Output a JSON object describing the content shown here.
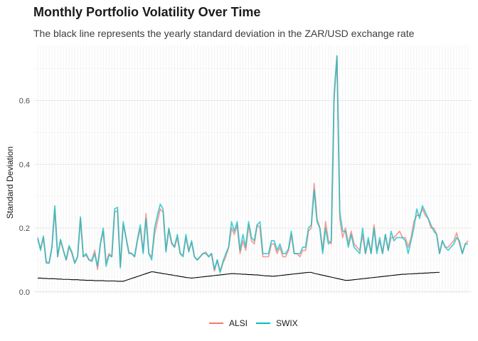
{
  "title": "Monthly Portfolio Volatility Over Time",
  "subtitle": "The black line represents the yearly standard deviation in the ZAR/USD exchange rate",
  "chart_data": {
    "type": "line",
    "title": "Monthly Portfolio Volatility Over Time",
    "subtitle": "The black line represents the yearly standard deviation in the ZAR/USD exchange rate",
    "xlabel": "",
    "ylabel": "Standard Deviation",
    "x_tick_labels_shown": false,
    "ylim": [
      -0.005,
      0.775
    ],
    "yticks": [
      0.0,
      0.2,
      0.4,
      0.6
    ],
    "ytick_labels": [
      "0.0",
      "0.2",
      "0.4",
      "0.6"
    ],
    "grid": true,
    "legend_position": "bottom",
    "n_points": 152,
    "series": [
      {
        "name": "ALSI",
        "color": "#f8766d",
        "values": [
          0.165,
          0.135,
          0.17,
          0.095,
          0.09,
          0.14,
          0.26,
          0.11,
          0.16,
          0.13,
          0.1,
          0.14,
          0.12,
          0.09,
          0.11,
          0.23,
          0.11,
          0.115,
          0.1,
          0.1,
          0.13,
          0.07,
          0.15,
          0.19,
          0.09,
          0.12,
          0.11,
          0.25,
          0.255,
          0.08,
          0.21,
          0.17,
          0.125,
          0.12,
          0.11,
          0.16,
          0.2,
          0.125,
          0.245,
          0.12,
          0.11,
          0.18,
          0.22,
          0.26,
          0.25,
          0.13,
          0.195,
          0.15,
          0.14,
          0.17,
          0.12,
          0.115,
          0.17,
          0.13,
          0.155,
          0.11,
          0.1,
          0.11,
          0.12,
          0.125,
          0.11,
          0.12,
          0.065,
          0.1,
          0.065,
          0.09,
          0.11,
          0.14,
          0.2,
          0.18,
          0.21,
          0.12,
          0.16,
          0.13,
          0.21,
          0.16,
          0.15,
          0.21,
          0.2,
          0.11,
          0.11,
          0.11,
          0.15,
          0.15,
          0.12,
          0.14,
          0.11,
          0.11,
          0.13,
          0.18,
          0.12,
          0.12,
          0.11,
          0.13,
          0.13,
          0.19,
          0.2,
          0.34,
          0.23,
          0.2,
          0.13,
          0.22,
          0.16,
          0.15,
          0.6,
          0.74,
          0.23,
          0.17,
          0.2,
          0.15,
          0.19,
          0.15,
          0.14,
          0.13,
          0.18,
          0.12,
          0.16,
          0.12,
          0.21,
          0.13,
          0.16,
          0.12,
          0.18,
          0.13,
          0.17,
          0.17,
          0.18,
          0.19,
          0.17,
          0.17,
          0.14,
          0.17,
          0.22,
          0.24,
          0.24,
          0.26,
          0.24,
          0.23,
          0.2,
          0.2,
          0.18,
          0.12,
          0.16,
          0.14,
          0.14,
          0.15,
          0.16,
          0.185,
          0.15,
          0.12,
          0.15,
          0.16
        ],
        "values_count_note": ""
      },
      {
        "name": "SWIX",
        "color": "#00bfc4",
        "values": [
          0.17,
          0.13,
          0.175,
          0.09,
          0.09,
          0.14,
          0.27,
          0.11,
          0.165,
          0.13,
          0.1,
          0.145,
          0.125,
          0.09,
          0.11,
          0.235,
          0.11,
          0.12,
          0.1,
          0.095,
          0.12,
          0.08,
          0.15,
          0.2,
          0.08,
          0.115,
          0.11,
          0.26,
          0.265,
          0.075,
          0.22,
          0.17,
          0.12,
          0.12,
          0.11,
          0.165,
          0.21,
          0.12,
          0.23,
          0.12,
          0.1,
          0.2,
          0.24,
          0.275,
          0.26,
          0.125,
          0.2,
          0.155,
          0.14,
          0.18,
          0.12,
          0.11,
          0.18,
          0.125,
          0.16,
          0.11,
          0.1,
          0.11,
          0.12,
          0.12,
          0.11,
          0.12,
          0.07,
          0.1,
          0.06,
          0.095,
          0.12,
          0.14,
          0.22,
          0.19,
          0.22,
          0.13,
          0.18,
          0.14,
          0.22,
          0.17,
          0.16,
          0.21,
          0.22,
          0.12,
          0.12,
          0.12,
          0.16,
          0.16,
          0.13,
          0.15,
          0.12,
          0.12,
          0.135,
          0.19,
          0.12,
          0.12,
          0.12,
          0.14,
          0.14,
          0.2,
          0.21,
          0.32,
          0.22,
          0.2,
          0.12,
          0.2,
          0.15,
          0.16,
          0.62,
          0.74,
          0.25,
          0.19,
          0.19,
          0.14,
          0.18,
          0.14,
          0.13,
          0.12,
          0.2,
          0.12,
          0.17,
          0.12,
          0.2,
          0.12,
          0.17,
          0.12,
          0.18,
          0.13,
          0.19,
          0.16,
          0.17,
          0.17,
          0.17,
          0.16,
          0.12,
          0.16,
          0.2,
          0.26,
          0.23,
          0.27,
          0.25,
          0.23,
          0.21,
          0.19,
          0.18,
          0.12,
          0.16,
          0.14,
          0.13,
          0.14,
          0.15,
          0.17,
          0.16,
          0.12,
          0.15,
          0.15
        ]
      },
      {
        "name": "",
        "color": "#000000",
        "values": [
          0.043,
          0.043,
          0.042,
          0.042,
          0.041,
          0.041,
          0.041,
          0.04,
          0.04,
          0.039,
          0.039,
          0.039,
          0.038,
          0.038,
          0.038,
          0.037,
          0.037,
          0.036,
          0.036,
          0.036,
          0.035,
          0.035,
          0.035,
          0.035,
          0.034,
          0.034,
          0.034,
          0.034,
          0.033,
          0.033,
          0.033,
          0.036,
          0.039,
          0.042,
          0.045,
          0.048,
          0.051,
          0.054,
          0.057,
          0.06,
          0.063,
          0.062,
          0.06,
          0.059,
          0.057,
          0.056,
          0.054,
          0.053,
          0.051,
          0.05,
          0.048,
          0.047,
          0.045,
          0.044,
          0.043,
          0.044,
          0.045,
          0.046,
          0.047,
          0.048,
          0.049,
          0.05,
          0.051,
          0.052,
          0.053,
          0.054,
          0.055,
          0.056,
          0.057,
          0.057,
          0.056,
          0.056,
          0.055,
          0.055,
          0.054,
          0.054,
          0.053,
          0.053,
          0.052,
          0.051,
          0.05,
          0.05,
          0.049,
          0.049,
          0.05,
          0.051,
          0.052,
          0.053,
          0.054,
          0.055,
          0.056,
          0.057,
          0.058,
          0.059,
          0.06,
          0.061,
          0.061,
          0.058,
          0.056,
          0.054,
          0.052,
          0.05,
          0.048,
          0.046,
          0.044,
          0.042,
          0.04,
          0.038,
          0.036,
          0.036,
          0.037,
          0.038,
          0.039,
          0.04,
          0.041,
          0.042,
          0.043,
          0.044,
          0.045,
          0.046,
          0.047,
          0.048,
          0.049,
          0.05,
          0.051,
          0.052,
          0.053,
          0.054,
          0.055,
          0.055,
          0.056,
          0.056,
          0.057,
          0.057,
          0.058,
          0.058,
          0.059,
          0.059,
          0.06,
          0.06,
          0.061,
          0.061,
          null,
          null,
          null,
          null,
          null,
          null,
          null,
          null,
          null,
          null,
          null,
          null
        ]
      }
    ]
  },
  "legend": {
    "items": [
      {
        "label": "ALSI",
        "color": "#f8766d"
      },
      {
        "label": "SWIX",
        "color": "#00bfc4"
      }
    ]
  }
}
